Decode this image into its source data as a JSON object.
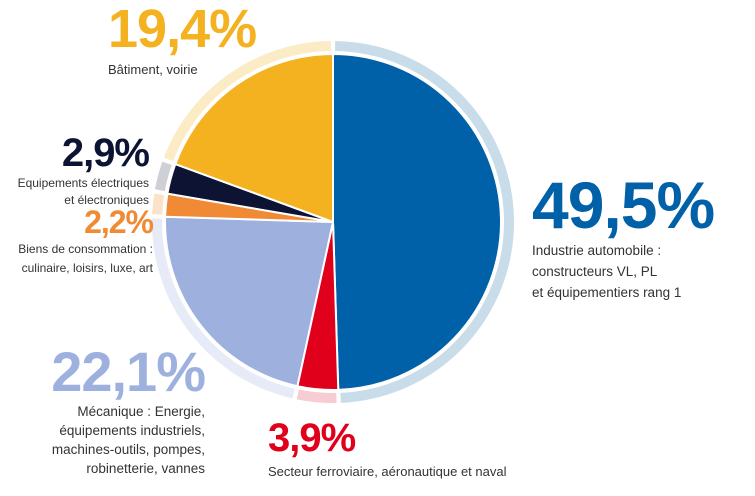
{
  "chart_data": {
    "type": "pie",
    "slices": [
      {
        "value": 49.5,
        "label": "49,5%",
        "description": [
          "Industrie automobile :",
          "constructeurs VL, PL",
          "et équipementiers rang 1"
        ],
        "color": "#0060a8",
        "ring_color": "#c9dcea"
      },
      {
        "value": 3.9,
        "label": "3,9%",
        "description": [
          "Secteur ferroviaire, aéronautique et naval"
        ],
        "color": "#e0001b",
        "ring_color": "#f6cdd2"
      },
      {
        "value": 22.1,
        "label": "22,1%",
        "description": [
          "Mécanique : Energie,",
          "équipements industriels,",
          "machines-outils, pompes,",
          "robinetterie, vannes"
        ],
        "color": "#9eb1de",
        "ring_color": "#e6ebf7"
      },
      {
        "value": 2.2,
        "label": "2,2%",
        "description": [
          "Biens de consommation :",
          "culinaire, loisirs, luxe, art"
        ],
        "color": "#f08a34",
        "ring_color": "#fce2c9"
      },
      {
        "value": 2.9,
        "label": "2,9%",
        "description": [
          "Equipements électriques",
          "et électroniques"
        ],
        "color": "#0d1433",
        "ring_color": "#cfd0d6"
      },
      {
        "value": 19.4,
        "label": "19,4%",
        "description": [
          "Bâtiment, voirie"
        ],
        "color": "#f4b120",
        "ring_color": "#fcecc6"
      }
    ]
  }
}
